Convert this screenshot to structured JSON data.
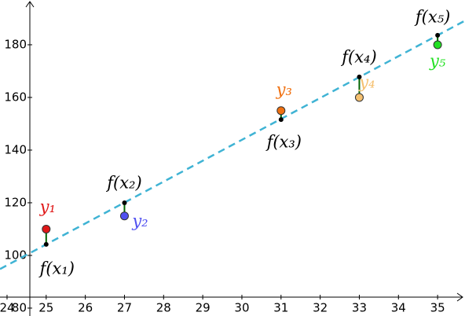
{
  "chart_data": {
    "type": "scatter",
    "x": [
      25,
      27,
      31,
      33,
      35
    ],
    "observed": {
      "values": [
        110,
        115,
        155,
        160,
        180
      ],
      "labels": [
        "y₁",
        "y₂",
        "y₃",
        "y₄",
        "y₅"
      ],
      "colors": [
        "#e01818",
        "#5050f0",
        "#f07010",
        "#f5c070",
        "#22e022"
      ]
    },
    "fitted": {
      "values": [
        104.2,
        120,
        151.6,
        167.8,
        183.6
      ],
      "labels": [
        "f(x₁)",
        "f(x₂)",
        "f(x₃)",
        "f(x₄)",
        "f(x₅)"
      ],
      "color": "#000000"
    },
    "line_color": "#3fb3d4",
    "residual_color": "#006400",
    "xlim": [
      23.82,
      35.7
    ],
    "ylim": [
      77,
      197
    ],
    "xticks": [
      24,
      25,
      26,
      27,
      28,
      29,
      30,
      31,
      32,
      33,
      34,
      35
    ],
    "yticks": [
      80,
      100,
      120,
      140,
      160,
      180
    ]
  }
}
